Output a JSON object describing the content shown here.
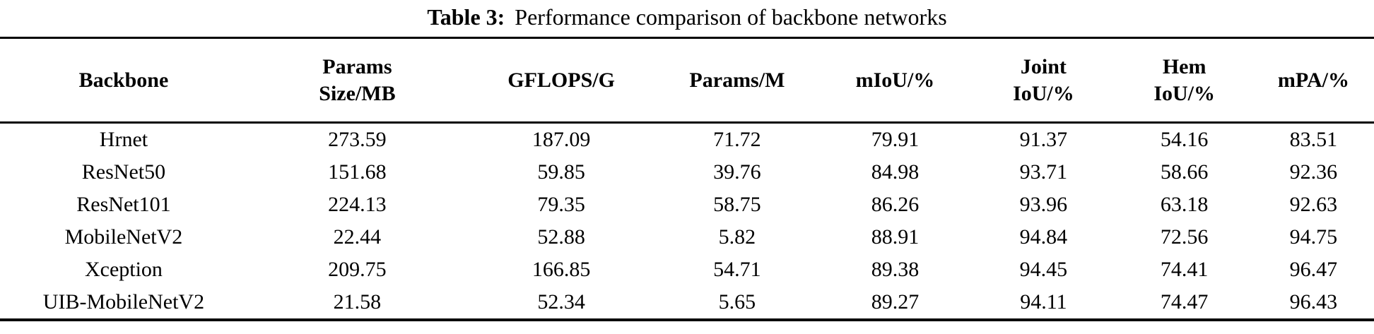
{
  "caption": {
    "label": "Table 3:",
    "text": "Performance comparison of backbone networks"
  },
  "table": {
    "headers": [
      [
        "Backbone"
      ],
      [
        "Params",
        "Size/MB"
      ],
      [
        "GFLOPS/G"
      ],
      [
        "Params/M"
      ],
      [
        "mIoU/%"
      ],
      [
        "Joint",
        "IoU/%"
      ],
      [
        "Hem",
        "IoU/%"
      ],
      [
        "mPA/%"
      ]
    ],
    "rows": [
      {
        "name": "Hrnet",
        "values": [
          "273.59",
          "187.09",
          "71.72",
          "79.91",
          "91.37",
          "54.16",
          "83.51"
        ]
      },
      {
        "name": "ResNet50",
        "values": [
          "151.68",
          "59.85",
          "39.76",
          "84.98",
          "93.71",
          "58.66",
          "92.36"
        ]
      },
      {
        "name": "ResNet101",
        "values": [
          "224.13",
          "79.35",
          "58.75",
          "86.26",
          "93.96",
          "63.18",
          "92.63"
        ]
      },
      {
        "name": "MobileNetV2",
        "values": [
          "22.44",
          "52.88",
          "5.82",
          "88.91",
          "94.84",
          "72.56",
          "94.75"
        ]
      },
      {
        "name": "Xception",
        "values": [
          "209.75",
          "166.85",
          "54.71",
          "89.38",
          "94.45",
          "74.41",
          "96.47"
        ]
      },
      {
        "name": "UIB-MobileNetV2",
        "values": [
          "21.58",
          "52.34",
          "5.65",
          "89.27",
          "94.11",
          "74.47",
          "96.43"
        ]
      }
    ]
  },
  "chart_data": {
    "type": "table",
    "title": "Table 3: Performance comparison of backbone networks",
    "categories": [
      "Backbone",
      "Params Size/MB",
      "GFLOPS/G",
      "Params/M",
      "mIoU/%",
      "Joint IoU/%",
      "Hem IoU/%",
      "mPA/%"
    ],
    "series": [
      {
        "name": "Hrnet",
        "values": [
          273.59,
          187.09,
          71.72,
          79.91,
          91.37,
          54.16,
          83.51
        ]
      },
      {
        "name": "ResNet50",
        "values": [
          151.68,
          59.85,
          39.76,
          84.98,
          93.71,
          58.66,
          92.36
        ]
      },
      {
        "name": "ResNet101",
        "values": [
          224.13,
          79.35,
          58.75,
          86.26,
          93.96,
          63.18,
          92.63
        ]
      },
      {
        "name": "MobileNetV2",
        "values": [
          22.44,
          52.88,
          5.82,
          88.91,
          94.84,
          72.56,
          94.75
        ]
      },
      {
        "name": "Xception",
        "values": [
          209.75,
          166.85,
          54.71,
          89.38,
          94.45,
          74.41,
          96.47
        ]
      },
      {
        "name": "UIB-MobileNetV2",
        "values": [
          21.58,
          52.34,
          5.65,
          89.27,
          94.11,
          74.47,
          96.43
        ]
      }
    ]
  }
}
